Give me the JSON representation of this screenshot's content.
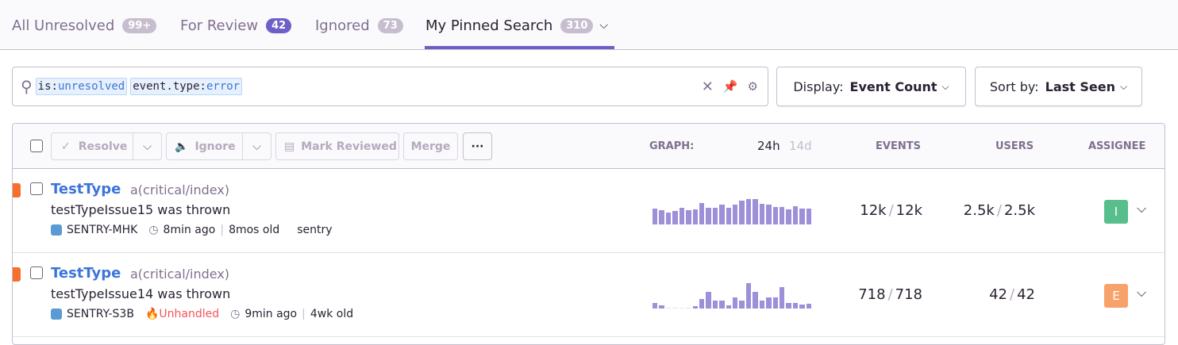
{
  "tabs": [
    {
      "label": "All Unresolved",
      "count": "99+"
    },
    {
      "label": "For Review",
      "count": "42"
    },
    {
      "label": "Ignored",
      "count": "73"
    },
    {
      "label": "My Pinned Search",
      "count": "310"
    }
  ],
  "search": {
    "tokens": [
      {
        "key": "is:",
        "value": "unresolved"
      },
      {
        "key": "event.type:",
        "value": "error"
      }
    ]
  },
  "display": {
    "label": "Display:",
    "value": "Event Count"
  },
  "sort": {
    "label": "Sort by:",
    "value": "Last Seen"
  },
  "actions": {
    "resolve": "Resolve",
    "ignore": "Ignore",
    "mark_reviewed": "Mark Reviewed",
    "merge": "Merge",
    "more": "···"
  },
  "columns": {
    "graph": "GRAPH:",
    "period_24h": "24h",
    "period_14d": "14d",
    "events": "EVENTS",
    "users": "USERS",
    "assignee": "ASSIGNEE"
  },
  "colors": {
    "accent": "#6c5fc7",
    "link": "#3d74db",
    "level_error": "#f86e2c",
    "bar": "#9d8fd8"
  },
  "issues": [
    {
      "title": "TestType",
      "culprit": "a(critical/index)",
      "message": "testTypeIssue15 was thrown",
      "short_id": "SENTRY-MHK",
      "unhandled": "",
      "last_seen": "8min ago",
      "age": "8mos old",
      "project": "sentry",
      "events": "12k",
      "events_total": "12k",
      "users": "2.5k",
      "users_total": "2.5k",
      "assignee": "I",
      "assignee_color": "#57be8c",
      "trend": [
        19,
        17,
        14,
        16,
        20,
        17,
        18,
        25,
        20,
        20,
        23,
        20,
        23,
        28,
        30,
        30,
        24,
        23,
        21,
        21,
        18,
        22,
        19,
        19
      ]
    },
    {
      "title": "TestType",
      "culprit": "a(critical/index)",
      "message": "testTypeIssue14 was thrown",
      "short_id": "SENTRY-S3B",
      "unhandled": "Unhandled",
      "last_seen": "9min ago",
      "age": "4wk old",
      "project": "",
      "events": "718",
      "events_total": "718",
      "users": "42",
      "users_total": "42",
      "assignee": "E",
      "assignee_color": "#f7a26a",
      "trend": [
        7,
        4,
        1,
        1,
        1,
        1,
        3,
        11,
        20,
        9,
        9,
        4,
        13,
        9,
        30,
        20,
        9,
        13,
        13,
        25,
        7,
        7,
        5,
        6
      ]
    }
  ]
}
